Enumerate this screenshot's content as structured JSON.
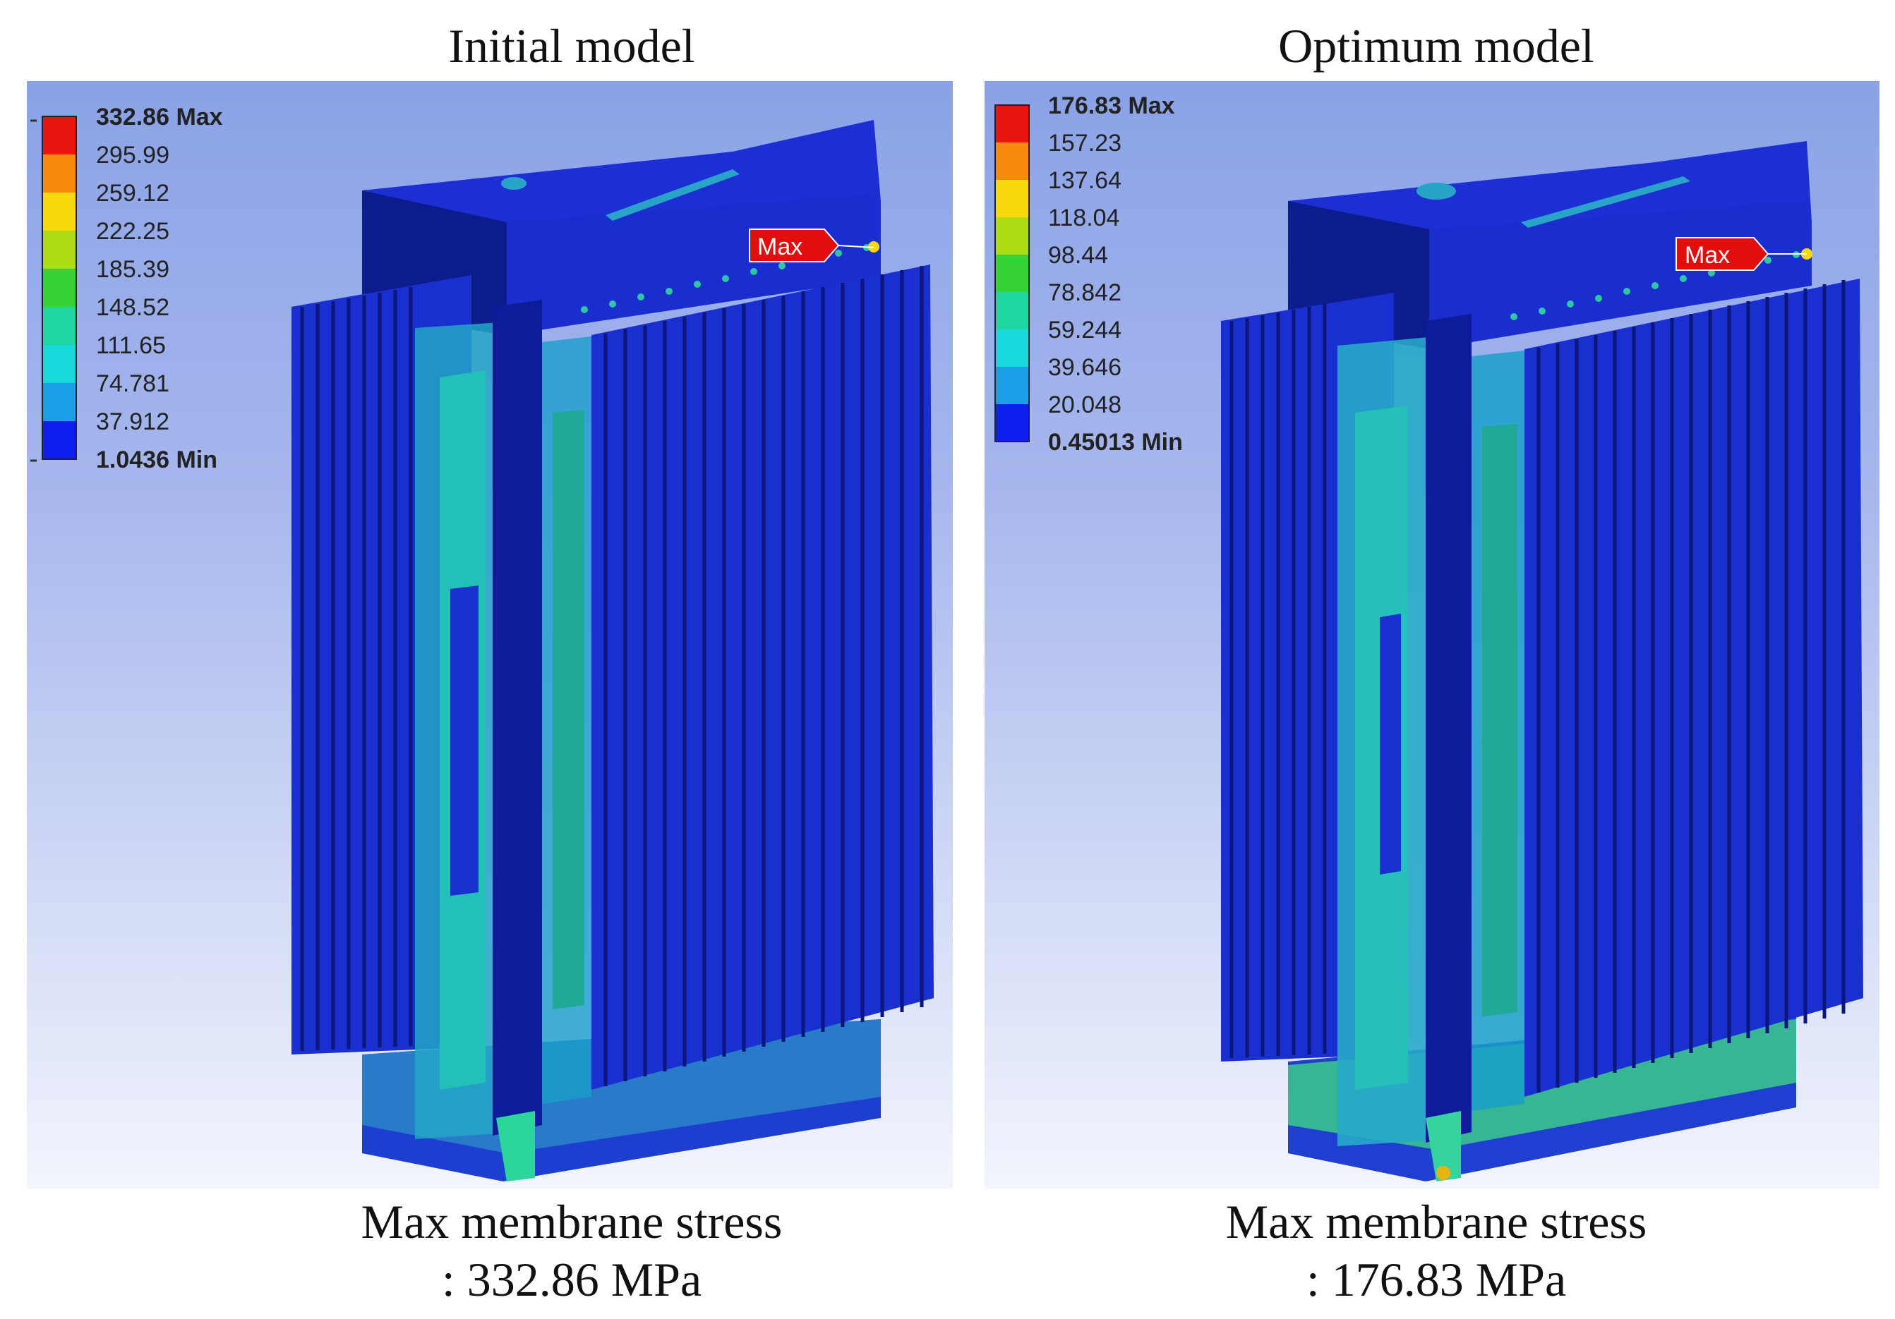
{
  "panels": [
    {
      "title": "Initial model",
      "legend": [
        "332.86 Max",
        "295.99",
        "259.12",
        "222.25",
        "185.39",
        "148.52",
        "111.65",
        "74.781",
        "37.912",
        "1.0436 Min"
      ],
      "probe_label": "Max",
      "caption_line1": "Max membrane stress",
      "caption_line2": ": 332.86 MPa"
    },
    {
      "title": "Optimum model",
      "legend": [
        "176.83 Max",
        "157.23",
        "137.64",
        "118.04",
        "98.44",
        "78.842",
        "59.244",
        "39.646",
        "20.048",
        "0.45013 Min"
      ],
      "probe_label": "Max",
      "caption_line1": "Max membrane stress",
      "caption_line2": ": 176.83 MPa"
    }
  ],
  "legend_colors": [
    "#e8160f",
    "#f68a0c",
    "#f7d90c",
    "#aedb13",
    "#36d336",
    "#1fd6a0",
    "#17d9dc",
    "#1a9ee8",
    "#0f1ff0"
  ],
  "colors": {
    "model_blue": "#1a2fd6",
    "model_dark": "#0a1a86",
    "stress_teal": "#27a9c9",
    "probe_red": "#e20e0e"
  }
}
